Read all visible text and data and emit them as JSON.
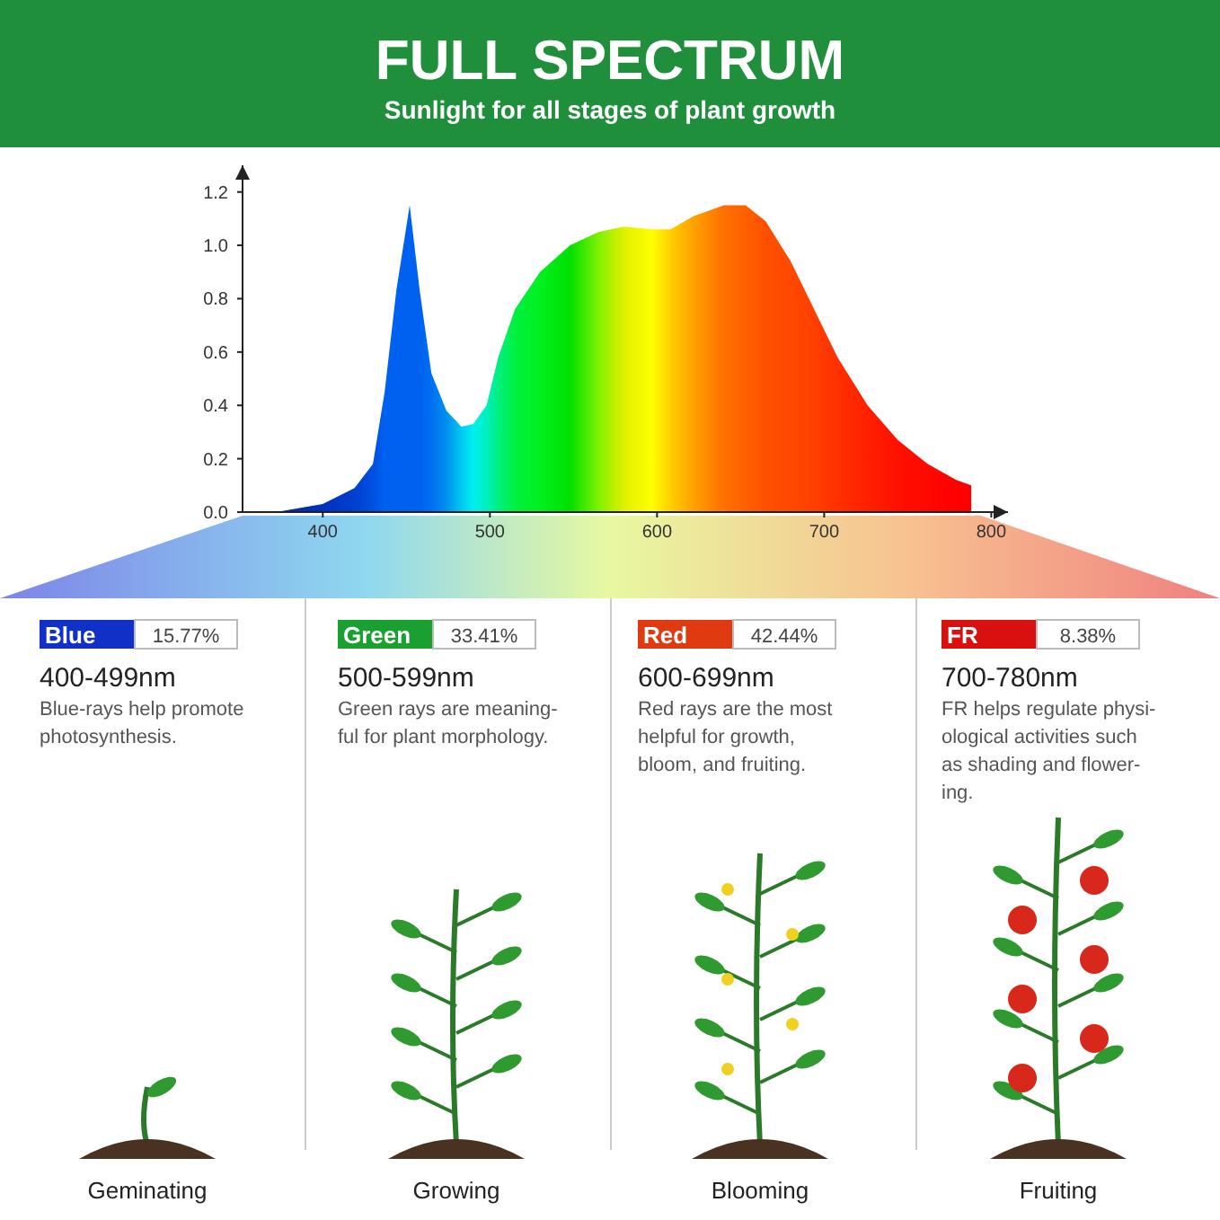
{
  "chart_data": [
    {
      "type": "area",
      "title": "FULL SPECTRUM",
      "subtitle": "Sunlight for all stages of plant growth",
      "xlim": [
        352,
        810
      ],
      "ylim": [
        0,
        1.3
      ],
      "xticks": [
        400,
        500,
        600,
        700,
        800
      ],
      "yticks": [
        {
          "value": 0,
          "label": "0.0"
        },
        {
          "value": 0.2,
          "label": "0.2"
        },
        {
          "value": 0.4,
          "label": "0.4"
        },
        {
          "value": 0.6,
          "label": "0.6"
        },
        {
          "value": 0.8,
          "label": "0.8"
        },
        {
          "value": 1.0,
          "label": "1.0"
        },
        {
          "value": 1.2,
          "label": "1.2"
        }
      ],
      "series": [
        {
          "x": [
            372,
            400,
            419,
            430,
            437,
            444,
            452,
            458,
            465,
            474,
            483,
            490,
            498,
            505,
            515,
            530,
            548,
            565,
            580,
            597,
            608,
            622,
            640,
            653,
            665,
            680,
            694,
            708,
            726,
            744,
            762,
            779,
            788,
            788
          ],
          "values": [
            0,
            0.03,
            0.09,
            0.18,
            0.45,
            0.83,
            1.15,
            0.83,
            0.52,
            0.38,
            0.32,
            0.33,
            0.4,
            0.58,
            0.76,
            0.9,
            1.0,
            1.05,
            1.07,
            1.06,
            1.06,
            1.11,
            1.15,
            1.15,
            1.09,
            0.94,
            0.76,
            0.58,
            0.4,
            0.27,
            0.18,
            0.12,
            0.1,
            0
          ],
          "colors": [
            "#0a2a9a",
            "#0030c0",
            "#0040d0",
            "#0050e0",
            "#0060f0",
            "#0060f0",
            "#0060f0",
            "#0060f0",
            "#0070f0",
            "#0090f0",
            "#00c8f0",
            "#00f0f0",
            "#00f0c0",
            "#00f080",
            "#00f040",
            "#00f020",
            "#00e000",
            "#80f000",
            "#e0f000",
            "#ffff00",
            "#ffd000",
            "#ffa000",
            "#ff7000",
            "#ff6000",
            "#ff5000",
            "#ff4800",
            "#ff4000",
            "#ff3000",
            "#ff2000",
            "#ff1000",
            "#ff0800",
            "#ff0000",
            "#ff0000",
            "#ff0000"
          ]
        }
      ],
      "grid": false
    },
    {
      "type": "other",
      "categories": [
        "Blue",
        "Green",
        "Red",
        "FR"
      ],
      "value_labels": [
        "15.77%",
        "33.41%",
        "42.44%",
        "8.38%"
      ],
      "colors": [
        "#1030c8",
        "#1aa030",
        "#e03a10",
        "#d81010"
      ],
      "annotations": [
        "400-499nm",
        "Blue-rays help promote\nphotosynthesis.",
        "Geminating",
        "500-599nm",
        "Green rays are meaning-\nful for plant morphology.",
        "Growing",
        "600-699nm",
        "Red rays are the most\nhelpful for growth,\nbloom, and fruiting.",
        "Blooming",
        "700-780nm",
        "FR helps regulate physi-\nological activities such\nas shading and flower-\ning.",
        "Fruiting"
      ]
    }
  ]
}
